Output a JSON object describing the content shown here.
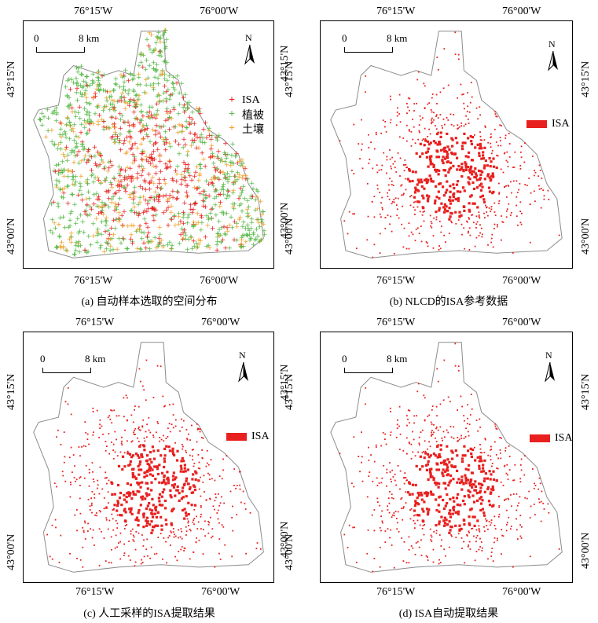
{
  "colors": {
    "isa": "#e8201f",
    "vegetation": "#56b947",
    "soil": "#f0a12a",
    "boundary": "#8c8c8c"
  },
  "panels": [
    {
      "id": "a",
      "caption": "(a) 自动样本选取的空间分布",
      "top_labels": [
        "76°15'W",
        "76°00'W"
      ],
      "bottom_labels": [
        "76°15'W",
        "76°00'W"
      ],
      "left_labels": [
        "43°15'N",
        "43°00'N"
      ],
      "right_labels": [
        "43°15'N",
        "43°00'N"
      ],
      "scale": {
        "start": "0",
        "end": "8 km"
      },
      "north": "N",
      "legend": [
        {
          "label": "ISA",
          "color_key": "isa",
          "symbol": "+"
        },
        {
          "label": "植被",
          "color_key": "vegetation",
          "symbol": "+"
        },
        {
          "label": "土壤",
          "color_key": "soil",
          "symbol": "+"
        }
      ]
    },
    {
      "id": "b",
      "caption": "(b) NLCD的ISA参考数据",
      "top_labels": [
        "76°15'W",
        "76°00'W"
      ],
      "bottom_labels": [
        "76°15'W",
        "76°00'W"
      ],
      "left_labels": [
        "43°15'N",
        "43°00'N"
      ],
      "right_labels": [
        "43°15'N",
        "43°00'N"
      ],
      "scale": {
        "start": "0",
        "end": "8 km"
      },
      "north": "N",
      "legend": [
        {
          "label": "ISA",
          "color_key": "isa"
        }
      ]
    },
    {
      "id": "c",
      "caption": "(c) 人工采样的ISA提取结果",
      "top_labels": [
        "76°15'W",
        "76°00'W"
      ],
      "bottom_labels": [
        "76°15'W",
        "76°00'W"
      ],
      "left_labels": [
        "43°15'N",
        "43°00'N"
      ],
      "right_labels": [
        "43°15'N",
        "43°00'N"
      ],
      "scale": {
        "start": "0",
        "end": "8 km"
      },
      "north": "N",
      "legend": [
        {
          "label": "ISA",
          "color_key": "isa"
        }
      ]
    },
    {
      "id": "d",
      "caption": "(d) ISA自动提取结果",
      "top_labels": [
        "76°15'W",
        "76°00'W"
      ],
      "bottom_labels": [
        "76°15'W",
        "76°00'W"
      ],
      "left_labels": [
        "43°15'N",
        "43°00'N"
      ],
      "right_labels": [
        "43°15'N",
        "43°00'N"
      ],
      "scale": {
        "start": "0",
        "end": "8 km"
      },
      "north": "N",
      "legend": [
        {
          "label": "ISA",
          "color_key": "isa"
        }
      ]
    }
  ]
}
